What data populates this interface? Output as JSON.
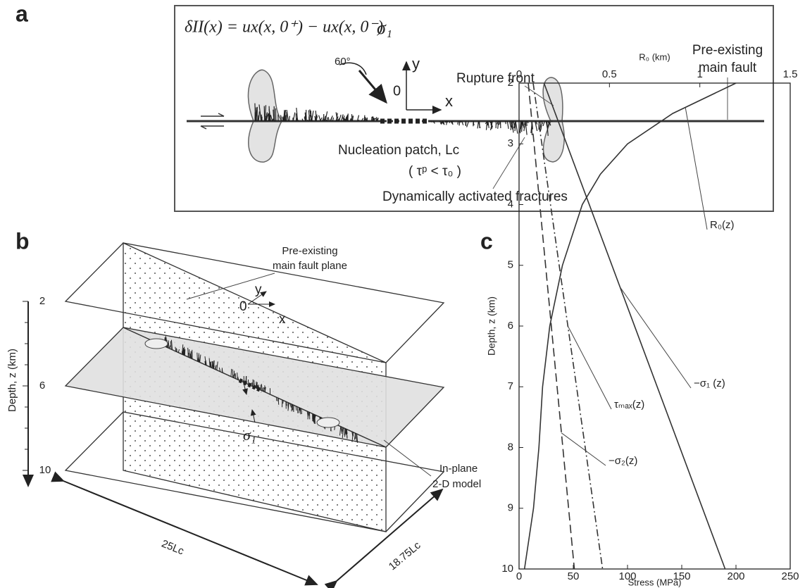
{
  "panels": {
    "a": {
      "label": "a",
      "equation": "δII(x) = ux(x, 0⁺) − ux(x, 0⁻)",
      "sigma": "σ₁",
      "angle": "60°",
      "axis_y": "y",
      "origin": "0",
      "axis_x": "x",
      "rupture_front": "Rupture front",
      "fault": [
        "Pre-existing",
        "main fault"
      ],
      "nucleation": "Nucleation patch, Lc",
      "condition": "( τᵖ < τ₀ )",
      "fractures": "Dynamically activated fractures"
    },
    "b": {
      "label": "b",
      "depth_ticks": [
        "2",
        "6",
        "10"
      ],
      "depth_axis": "Depth, z (km)",
      "fault_plane": [
        "Pre-existing",
        "main fault plane"
      ],
      "origin": "0",
      "axis_y": "y",
      "axis_x": "x",
      "sigma": "σ₁",
      "model": [
        "In-plane",
        "2-D model"
      ],
      "length": "25Lc",
      "width": "18.75Lc"
    },
    "c": {
      "label": "c"
    }
  },
  "chart_data": {
    "type": "line",
    "xlabel": "Stress (MPa)",
    "x2label": "R₀ (km)",
    "ylabel": "Depth, z (km)",
    "xlim": [
      0,
      250
    ],
    "xticks": [
      0,
      50,
      100,
      150,
      200,
      250
    ],
    "x2lim": [
      0,
      1.5
    ],
    "x2ticks": [
      0,
      0.5,
      1,
      1.5
    ],
    "ylim": [
      2,
      10
    ],
    "yticks": [
      2,
      3,
      4,
      5,
      6,
      7,
      8,
      9,
      10
    ],
    "y_inverted": true,
    "series": [
      {
        "name": "−σ₁ (z)",
        "color": "#333333",
        "dash": "none",
        "x": [
          23,
          190
        ],
        "y": [
          2,
          10
        ]
      },
      {
        "name": "τₘₐₓ(z)",
        "color": "#333333",
        "dash": "10 4 2 4",
        "x": [
          13,
          77
        ],
        "y": [
          2,
          10
        ]
      },
      {
        "name": "−σ₂(z)",
        "color": "#333333",
        "dash": "12 6",
        "x": [
          8.5,
          51
        ],
        "y": [
          2,
          10
        ]
      },
      {
        "name": "R₀(z)",
        "color": "#333333",
        "dash": "none",
        "axis": "x2",
        "x": [
          1.2,
          0.85,
          0.6,
          0.45,
          0.35,
          0.24,
          0.17,
          0.13,
          0.11,
          0.08,
          0.03
        ],
        "y": [
          2,
          2.5,
          3,
          3.5,
          4,
          5,
          6,
          7,
          8,
          9,
          10
        ]
      }
    ]
  }
}
